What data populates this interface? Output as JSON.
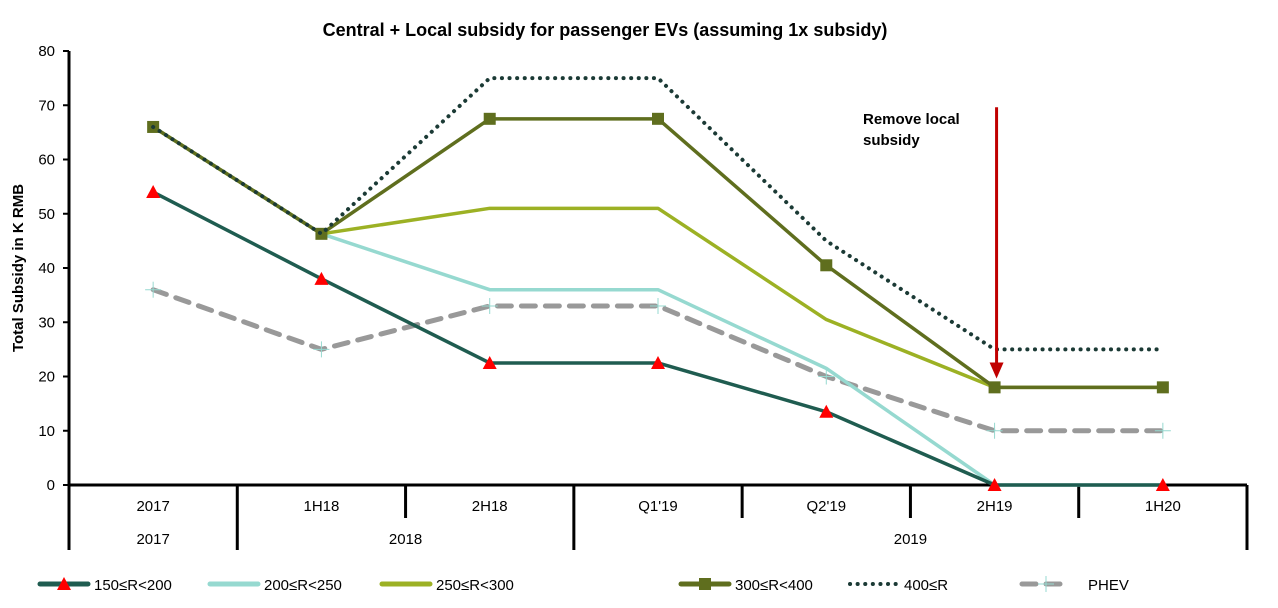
{
  "chart_data": {
    "type": "line",
    "title": "Central + Local subsidy for passenger EVs (assuming 1x subsidy)",
    "xlabel": "",
    "ylabel": "Total Subsidy in K RMB",
    "ylim": [
      0,
      80
    ],
    "yticks": [
      0,
      10,
      20,
      30,
      40,
      50,
      60,
      70,
      80
    ],
    "grid": false,
    "categories": [
      "2017",
      "1H18",
      "2H18",
      "Q1'19",
      "Q2'19",
      "2H19",
      "1H20"
    ],
    "groups": [
      {
        "label": "2017",
        "span": [
          0,
          0
        ]
      },
      {
        "label": "2018",
        "span": [
          1,
          2
        ]
      },
      {
        "label": "2019",
        "span": [
          3,
          6
        ]
      }
    ],
    "series": [
      {
        "name": "150≤R<200",
        "color": "#1f5c50",
        "style": "solid",
        "marker": "triangle",
        "marker_color": "#ff0000",
        "values": [
          54,
          38,
          22.5,
          22.5,
          13.5,
          0,
          0
        ]
      },
      {
        "name": "200≤R<250",
        "color": "#96d9d0",
        "style": "solid",
        "marker": "none",
        "values": [
          66,
          46.3,
          36,
          36,
          21.5,
          0,
          0
        ]
      },
      {
        "name": "250≤R<300",
        "color": "#9cb124",
        "style": "solid",
        "marker": "none",
        "values": [
          66,
          46.3,
          51,
          51,
          30.5,
          18,
          18
        ]
      },
      {
        "name": "300≤R<400",
        "color": "#5f6e1e",
        "style": "solid",
        "marker": "square",
        "marker_color": "#5f6e1e",
        "values": [
          66,
          46.3,
          67.5,
          67.5,
          40.5,
          18,
          18
        ]
      },
      {
        "name": "400≤R",
        "color": "#1b3a35",
        "style": "dotted",
        "marker": "none",
        "values": [
          66,
          46.3,
          75,
          75,
          45,
          25,
          25
        ]
      },
      {
        "name": "PHEV",
        "color": "#999999",
        "style": "dashed",
        "marker": "plus",
        "marker_color": "#96d9d0",
        "values": [
          36,
          25,
          33,
          33,
          20,
          10,
          10
        ]
      }
    ],
    "annotations": [
      {
        "text_lines": [
          "Remove local",
          "subsidy"
        ],
        "arrow_at_category": "2H19",
        "arrow_color": "#c00000",
        "arrow_from_value": 70,
        "arrow_to_value": 20
      }
    ],
    "legend": {
      "placement": "bottom"
    }
  }
}
